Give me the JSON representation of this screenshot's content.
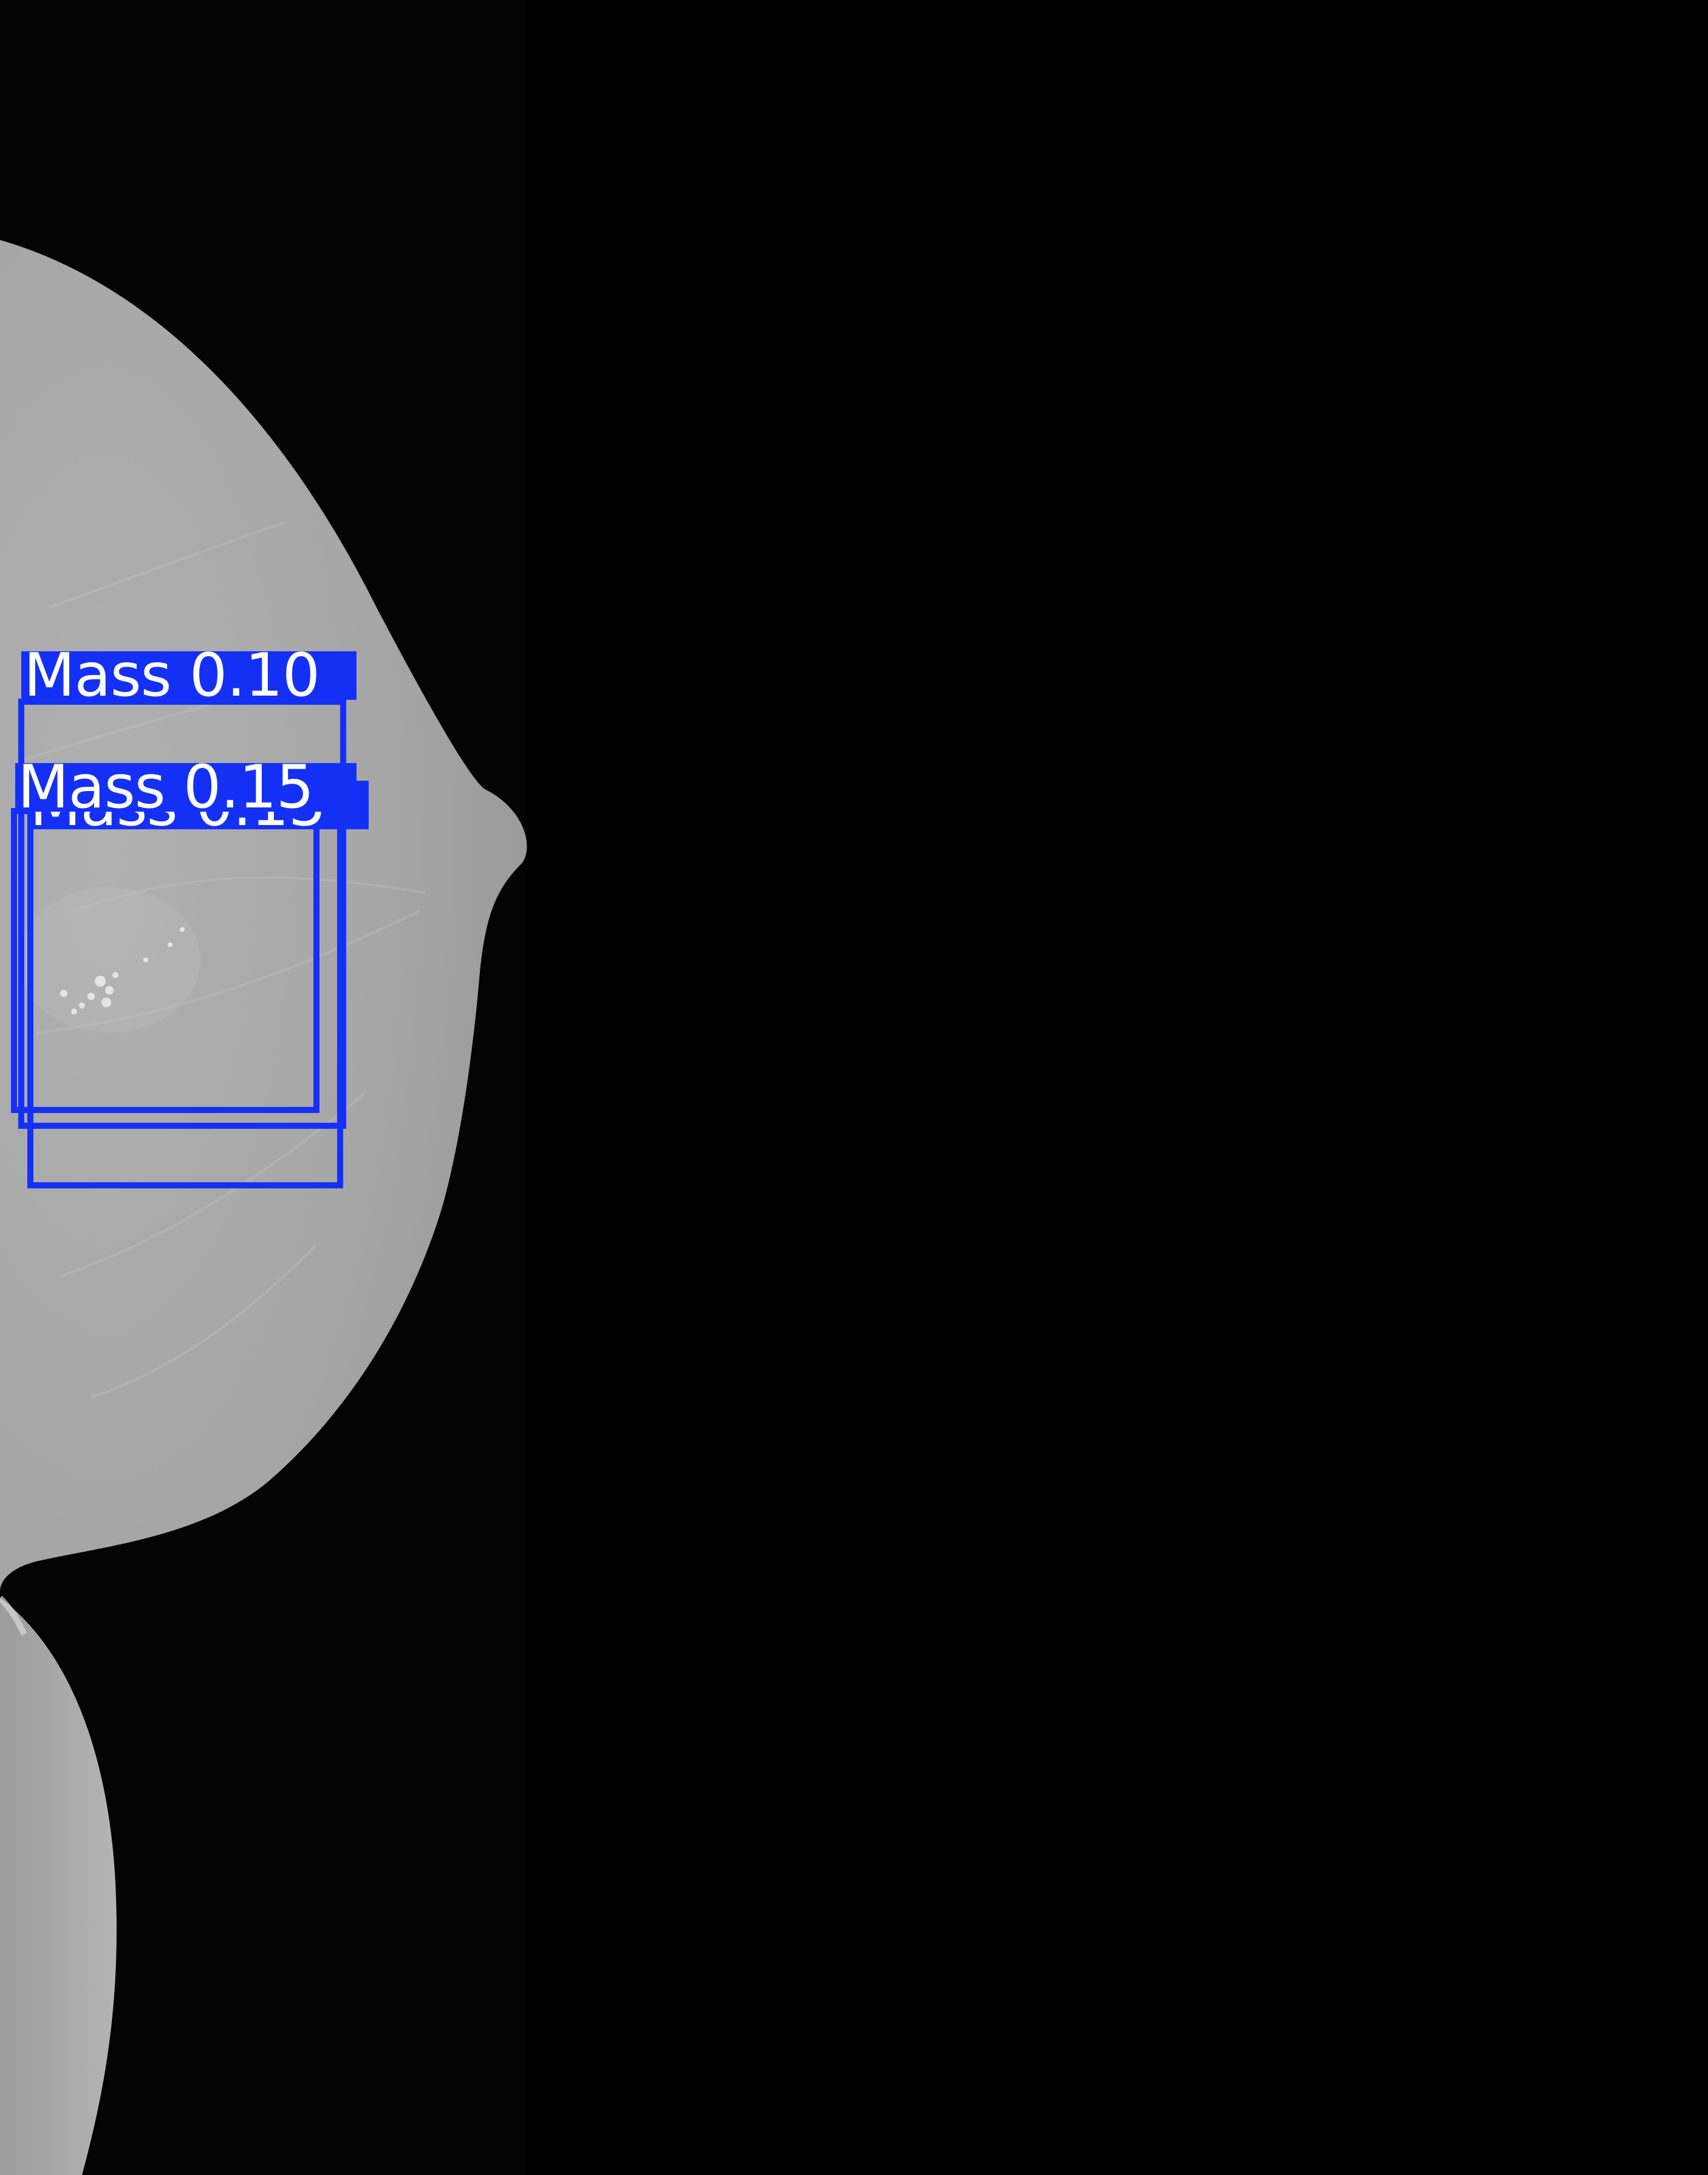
{
  "image": {
    "subject": "mammogram",
    "colors": {
      "background": "#000000",
      "tissue": "#a8a8a8",
      "tissue_edge": "#8e8e8e",
      "box": "#1530f5",
      "label_text": "#ffffff"
    }
  },
  "detections": [
    {
      "label": "Mass 0.10"
    },
    {
      "label": "Mass 0.15"
    },
    {
      "label": "Mass 0.15"
    }
  ]
}
